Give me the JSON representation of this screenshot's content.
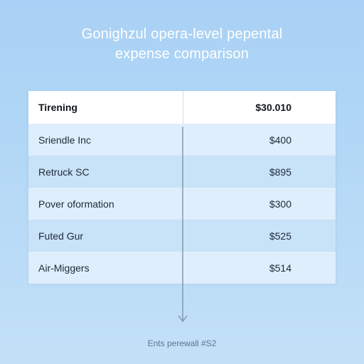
{
  "title": {
    "line1": "Gonighzul opera-level pepental",
    "line2": "expense comparison"
  },
  "table": {
    "header": {
      "name": "Tirening",
      "value": "$30.010"
    },
    "rows": [
      {
        "name": "Sriendle Inc",
        "value": "$400"
      },
      {
        "name": "Retruck SC",
        "value": "$895"
      },
      {
        "name": "Pover oformation",
        "value": "$300"
      },
      {
        "name": "Futed Gur",
        "value": "$525"
      },
      {
        "name": "Air-Miggers",
        "value": "$514"
      }
    ]
  },
  "footer": "Ents perewall #S2",
  "colors": {
    "background": "#b3d8f6",
    "row_light": "#deeefc",
    "row_dark": "#c8e2f8",
    "header_bg": "#ffffff"
  },
  "icons": {
    "arrow": "arrow-down-icon"
  }
}
